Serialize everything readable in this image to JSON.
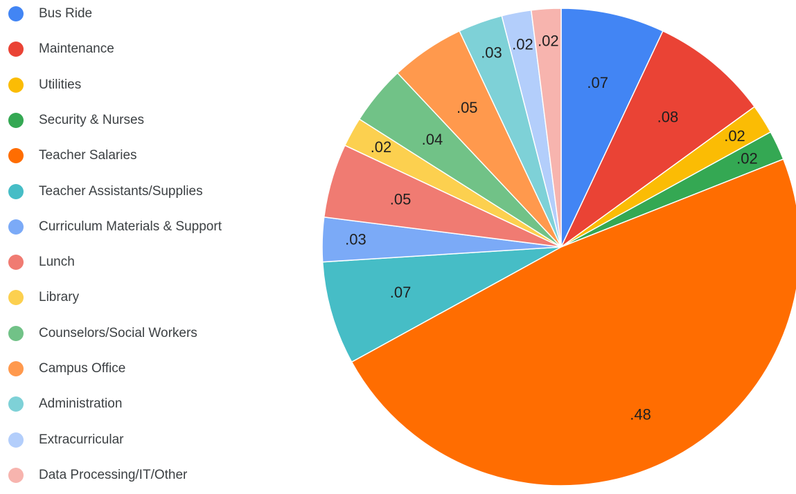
{
  "chart_data": {
    "type": "pie",
    "title": "",
    "legend_position": "left",
    "slices": [
      {
        "label": "Bus Ride",
        "value": 0.07,
        "display": ".07",
        "color": "#4285f4"
      },
      {
        "label": "Maintenance",
        "value": 0.08,
        "display": ".08",
        "color": "#ea4335"
      },
      {
        "label": "Utilities",
        "value": 0.02,
        "display": ".02",
        "color": "#fbbc04"
      },
      {
        "label": "Security & Nurses",
        "value": 0.02,
        "display": ".02",
        "color": "#34a853"
      },
      {
        "label": "Teacher Salaries",
        "value": 0.48,
        "display": ".48",
        "color": "#ff6d01"
      },
      {
        "label": "Teacher Assistants/Supplies",
        "value": 0.07,
        "display": ".07",
        "color": "#46bdc6"
      },
      {
        "label": "Curriculum Materials & Support",
        "value": 0.03,
        "display": ".03",
        "color": "#7baaf7"
      },
      {
        "label": "Lunch",
        "value": 0.05,
        "display": ".05",
        "color": "#f07b72"
      },
      {
        "label": "Library",
        "value": 0.02,
        "display": ".02",
        "color": "#fcd04f"
      },
      {
        "label": "Counselors/Social Workers",
        "value": 0.04,
        "display": ".04",
        "color": "#71c287"
      },
      {
        "label": "Campus Office",
        "value": 0.05,
        "display": ".05",
        "color": "#ff994d"
      },
      {
        "label": "Administration",
        "value": 0.03,
        "display": ".03",
        "color": "#7ed1d7"
      },
      {
        "label": "Extracurricular",
        "value": 0.02,
        "display": ".02",
        "color": "#b3cefb"
      },
      {
        "label": "Data Processing/IT/Other",
        "value": 0.02,
        "display": ".02",
        "color": "#f7b4ae"
      }
    ]
  }
}
